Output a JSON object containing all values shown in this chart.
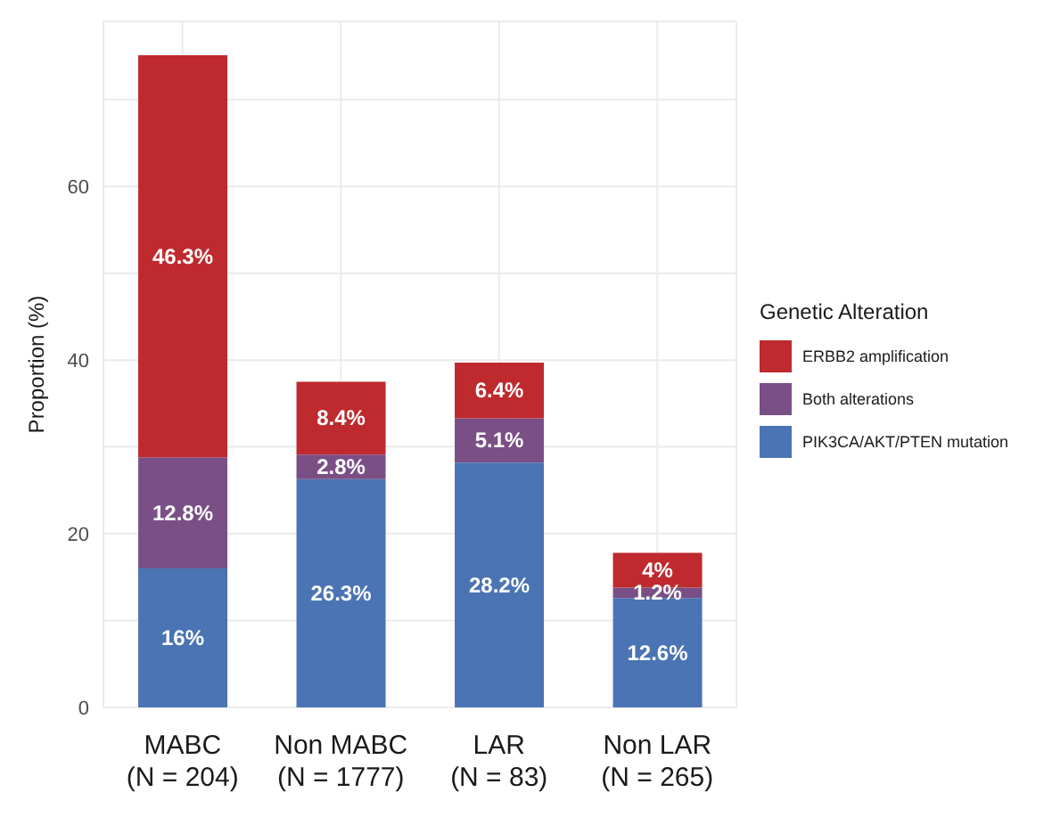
{
  "chart_data": {
    "type": "bar",
    "stacked": true,
    "ylabel": "Proportion (%)",
    "legend_title": "Genetic Alteration",
    "legend": "right",
    "grid": true,
    "categories": [
      "MABC\n(N = 204)",
      "Non MABC\n(N = 1777)",
      "LAR\n(N = 83)",
      "Non LAR\n(N = 265)"
    ],
    "series": [
      {
        "name": "PIK3CA/AKT/PTEN mutation",
        "color": "#4a74b4",
        "values": [
          16,
          26.3,
          28.2,
          12.6
        ],
        "value_labels": [
          "16%",
          "26.3%",
          "28.2%",
          "12.6%"
        ]
      },
      {
        "name": "Both alterations",
        "color": "#7a4f86",
        "values": [
          12.8,
          2.8,
          5.1,
          1.2
        ],
        "value_labels": [
          "12.8%",
          "2.8%",
          "5.1%",
          "1.2%"
        ]
      },
      {
        "name": "ERBB2 amplification",
        "color": "#bf2a2e",
        "values": [
          46.3,
          8.4,
          6.4,
          4
        ],
        "value_labels": [
          "46.3%",
          "8.4%",
          "6.4%",
          "4%"
        ]
      }
    ],
    "ylim": [
      0,
      79
    ],
    "yticks": [
      0,
      {
        "value": 10,
        "label": null
      },
      20,
      {
        "value": 30,
        "label": null
      },
      40,
      {
        "value": 50,
        "label": null
      },
      60,
      {
        "value": 70,
        "label": null
      }
    ]
  }
}
